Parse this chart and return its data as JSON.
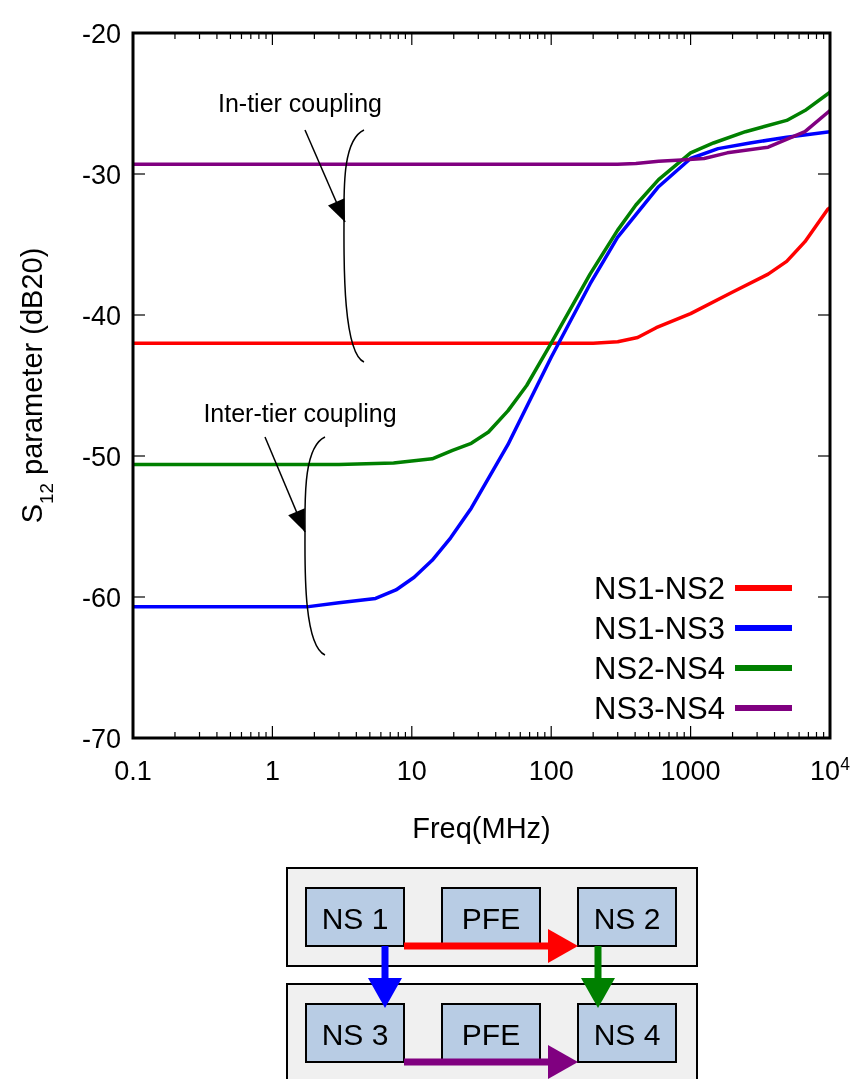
{
  "chart_data": {
    "type": "line",
    "xlabel": "Freq(MHz)",
    "ylabel": "S$_{12}$ parameter (dB20)",
    "log": "x",
    "xlim": [
      0.1,
      10000
    ],
    "ylim": [
      -70,
      -20
    ],
    "xticks": [
      0.1,
      {
        "value": 0.2,
        "label": null
      },
      {
        "value": 0.3,
        "label": null
      },
      {
        "value": 0.4,
        "label": null
      },
      {
        "value": 0.5,
        "label": null
      },
      {
        "value": 0.6,
        "label": null
      },
      {
        "value": 0.7,
        "label": null
      },
      {
        "value": 0.8,
        "label": null
      },
      {
        "value": 0.9,
        "label": null
      },
      1,
      {
        "value": 2,
        "label": null
      },
      {
        "value": 3,
        "label": null
      },
      {
        "value": 4,
        "label": null
      },
      {
        "value": 5,
        "label": null
      },
      {
        "value": 6,
        "label": null
      },
      {
        "value": 7,
        "label": null
      },
      {
        "value": 8,
        "label": null
      },
      {
        "value": 9,
        "label": null
      },
      10,
      {
        "value": 20,
        "label": null
      },
      {
        "value": 30,
        "label": null
      },
      {
        "value": 40,
        "label": null
      },
      {
        "value": 50,
        "label": null
      },
      {
        "value": 60,
        "label": null
      },
      {
        "value": 70,
        "label": null
      },
      {
        "value": 80,
        "label": null
      },
      {
        "value": 90,
        "label": null
      },
      100,
      {
        "value": 200,
        "label": null
      },
      {
        "value": 300,
        "label": null
      },
      {
        "value": 400,
        "label": null
      },
      {
        "value": 500,
        "label": null
      },
      {
        "value": 600,
        "label": null
      },
      {
        "value": 700,
        "label": null
      },
      {
        "value": 800,
        "label": null
      },
      {
        "value": 900,
        "label": null
      },
      1000,
      {
        "value": 2000,
        "label": null
      },
      {
        "value": 3000,
        "label": null
      },
      {
        "value": 4000,
        "label": null
      },
      {
        "value": 5000,
        "label": null
      },
      {
        "value": 6000,
        "label": null
      },
      {
        "value": 7000,
        "label": null
      },
      {
        "value": 8000,
        "label": null
      },
      {
        "value": 9000,
        "label": null
      },
      {
        "value": 10000,
        "label": "10$^{4}$"
      }
    ],
    "yticks": [
      -70,
      -60,
      -50,
      -40,
      -30,
      -20
    ],
    "grid": false,
    "legend": "bottom right",
    "line_style": "solid",
    "marker": "none",
    "series": [
      {
        "name": "NS1-NS2",
        "color": "#ff0000",
        "x": [
          0.1,
          1,
          10,
          100,
          200,
          300,
          417,
          567,
          1000,
          1972,
          3600,
          4890,
          6610,
          9640,
          10000
        ],
        "values": [
          -42.0,
          -42.0,
          -42.0,
          -42.0,
          -42.0,
          -41.9,
          -41.6,
          -40.9,
          -39.9,
          -38.4,
          -37.1,
          -36.2,
          -34.8,
          -32.5,
          -32.4
        ]
      },
      {
        "name": "NS1-NS3",
        "color": "#0000ff",
        "x": [
          0.1,
          1,
          1.76,
          3,
          5.5,
          7.7,
          10.4,
          14,
          19,
          26.7,
          48.9,
          100,
          190,
          299,
          589,
          1000,
          1574,
          2667,
          4890,
          10000
        ],
        "values": [
          -60.7,
          -60.7,
          -60.7,
          -60.4,
          -60.1,
          -59.5,
          -58.6,
          -57.4,
          -55.8,
          -53.7,
          -49.2,
          -43.0,
          -37.8,
          -34.5,
          -30.9,
          -28.9,
          -28.2,
          -27.8,
          -27.4,
          -27.0
        ]
      },
      {
        "name": "NS2-NS4",
        "color": "#008000",
        "x": [
          0.1,
          1,
          3,
          7.4,
          14,
          19.6,
          26.7,
          35.5,
          48.9,
          66.7,
          100,
          190,
          299,
          405,
          589,
          1000,
          1459,
          2475,
          4890,
          6610,
          10000
        ],
        "values": [
          -50.6,
          -50.6,
          -50.6,
          -50.5,
          -50.2,
          -49.6,
          -49.1,
          -48.3,
          -46.8,
          -45.0,
          -42.0,
          -37.1,
          -34.0,
          -32.2,
          -30.4,
          -28.5,
          -27.8,
          -27.0,
          -26.2,
          -25.5,
          -24.2
        ]
      },
      {
        "name": "NS3-NS4",
        "color": "#800080",
        "x": [
          0.1,
          1,
          10,
          100,
          299,
          405,
          589,
          858,
          1250,
          1832,
          3600,
          6610,
          10000
        ],
        "values": [
          -29.3,
          -29.3,
          -29.3,
          -29.3,
          -29.3,
          -29.25,
          -29.1,
          -29.0,
          -28.9,
          -28.5,
          -28.1,
          -27.0,
          -25.5
        ]
      }
    ],
    "annotations": [
      "In-tier coupling",
      "Inter-tier coupling",
      "NS 1",
      "PFE",
      "NS 2",
      "NS 3",
      "PFE",
      "NS 4"
    ]
  }
}
